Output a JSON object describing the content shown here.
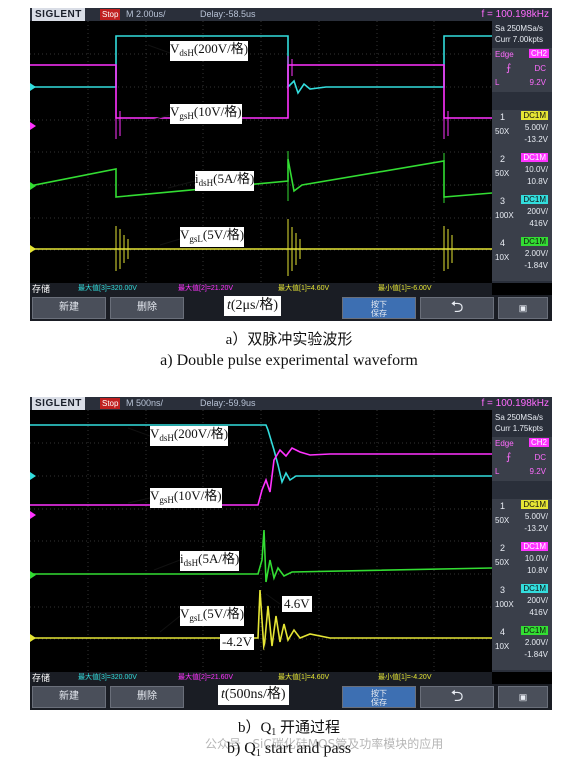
{
  "scope_a": {
    "logo": "SIGLENT",
    "status": "Stop",
    "timebase": "M 2.00us/",
    "delay": "Delay:-58.5us",
    "freq": "f = 100.198kHz",
    "sample_rate": "Sa 250MSa/s",
    "curr": "Curr 7.00kpts",
    "trigger": {
      "mode": "Edge",
      "source": "CH2",
      "coupling": "DC",
      "level_label": "L",
      "level": "9.2V"
    },
    "channels": [
      {
        "num": "1",
        "coupling": "DC1M",
        "probe": "50X",
        "scale": "5.00V/",
        "offset": "-13.2V",
        "color": "#e5e535"
      },
      {
        "num": "2",
        "coupling": "DC1M",
        "probe": "50X",
        "scale": "10.0V/",
        "offset": "10.8V",
        "color": "#ff33ff"
      },
      {
        "num": "3",
        "coupling": "DC1M",
        "probe": "100X",
        "scale": "200V/",
        "offset": "416V",
        "color": "#33dddd"
      },
      {
        "num": "4",
        "coupling": "DC1M",
        "probe": "10X",
        "scale": "2.00V/",
        "offset": "-1.84V",
        "color": "#33dd33"
      }
    ],
    "measurements": {
      "store": "存储",
      "m1": "最大值[3]=320.00V",
      "m2": "最大值[2]=21.20V",
      "m3": "最大值[1]=4.60V",
      "m4": "最小值[1]=-6.00V"
    },
    "softkeys": {
      "new": "新建",
      "delete": "删除",
      "press": "按下",
      "save": "保存"
    },
    "timebase_label": "(2μs/格)",
    "labels": {
      "vdsh": "(200V/格)",
      "vgsh": "(10V/格)",
      "idsh": "(5A/格)",
      "vgsl": "(5V/格)"
    }
  },
  "scope_b": {
    "logo": "SIGLENT",
    "status": "Stop",
    "timebase": "M 500ns/",
    "delay": "Delay:-59.9us",
    "freq": "f = 100.198kHz",
    "sample_rate": "Sa 250MSa/s",
    "curr": "Curr 1.75kpts",
    "trigger": {
      "mode": "Edge",
      "source": "CH2",
      "coupling": "DC",
      "level_label": "L",
      "level": "9.2V"
    },
    "channels": [
      {
        "num": "1",
        "coupling": "DC1M",
        "probe": "50X",
        "scale": "5.00V/",
        "offset": "-13.2V",
        "color": "#e5e535"
      },
      {
        "num": "2",
        "coupling": "DC1M",
        "probe": "50X",
        "scale": "10.0V/",
        "offset": "10.8V",
        "color": "#ff33ff"
      },
      {
        "num": "3",
        "coupling": "DC1M",
        "probe": "100X",
        "scale": "200V/",
        "offset": "416V",
        "color": "#33dddd"
      },
      {
        "num": "4",
        "coupling": "DC1M",
        "probe": "10X",
        "scale": "2.00V/",
        "offset": "-1.84V",
        "color": "#33dd33"
      }
    ],
    "measurements": {
      "store": "存储",
      "m1": "最大值[3]=320.00V",
      "m2": "最大值[2]=21.60V",
      "m3": "最大值[1]=4.60V",
      "m4": "最小值[1]=-4.20V"
    },
    "softkeys": {
      "new": "新建",
      "delete": "删除",
      "press": "按下",
      "save": "保存"
    },
    "timebase_label": "(500ns/格)",
    "labels": {
      "vdsh": "(200V/格)",
      "vgsh": "(10V/格)",
      "idsh": "(5A/格)",
      "vgsl": "(5V/格)"
    },
    "annotations": {
      "peak": "4.6V",
      "trough": "-4.2V"
    }
  },
  "captions": {
    "a_cn": "a）双脉冲实验波形",
    "a_en": "a) Double pulse experimental waveform",
    "b_cn": "b）Q",
    "b_cn_sub": "1",
    "b_cn_tail": " 开通过程",
    "b_en": "b) Q",
    "b_en_sub": "1",
    "b_en_tail": " start and pass"
  },
  "watermark": "公众号 · SiC碳化硅MOS管及功率模块的应用",
  "symbols": {
    "v": "V",
    "i": "i",
    "t": "t",
    "dsH": "dsH",
    "gsH": "gsH",
    "gsL": "gsL"
  }
}
